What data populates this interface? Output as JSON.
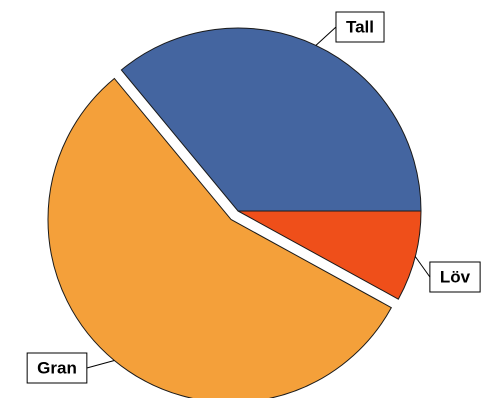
{
  "chart_data": {
    "type": "pie",
    "categories": [
      "Tall",
      "Gran",
      "Löv"
    ],
    "values": [
      36,
      56,
      8
    ],
    "colors": [
      "#4465a0",
      "#f4a03a",
      "#ef4f1a"
    ],
    "exploded": [
      false,
      true,
      false
    ]
  }
}
